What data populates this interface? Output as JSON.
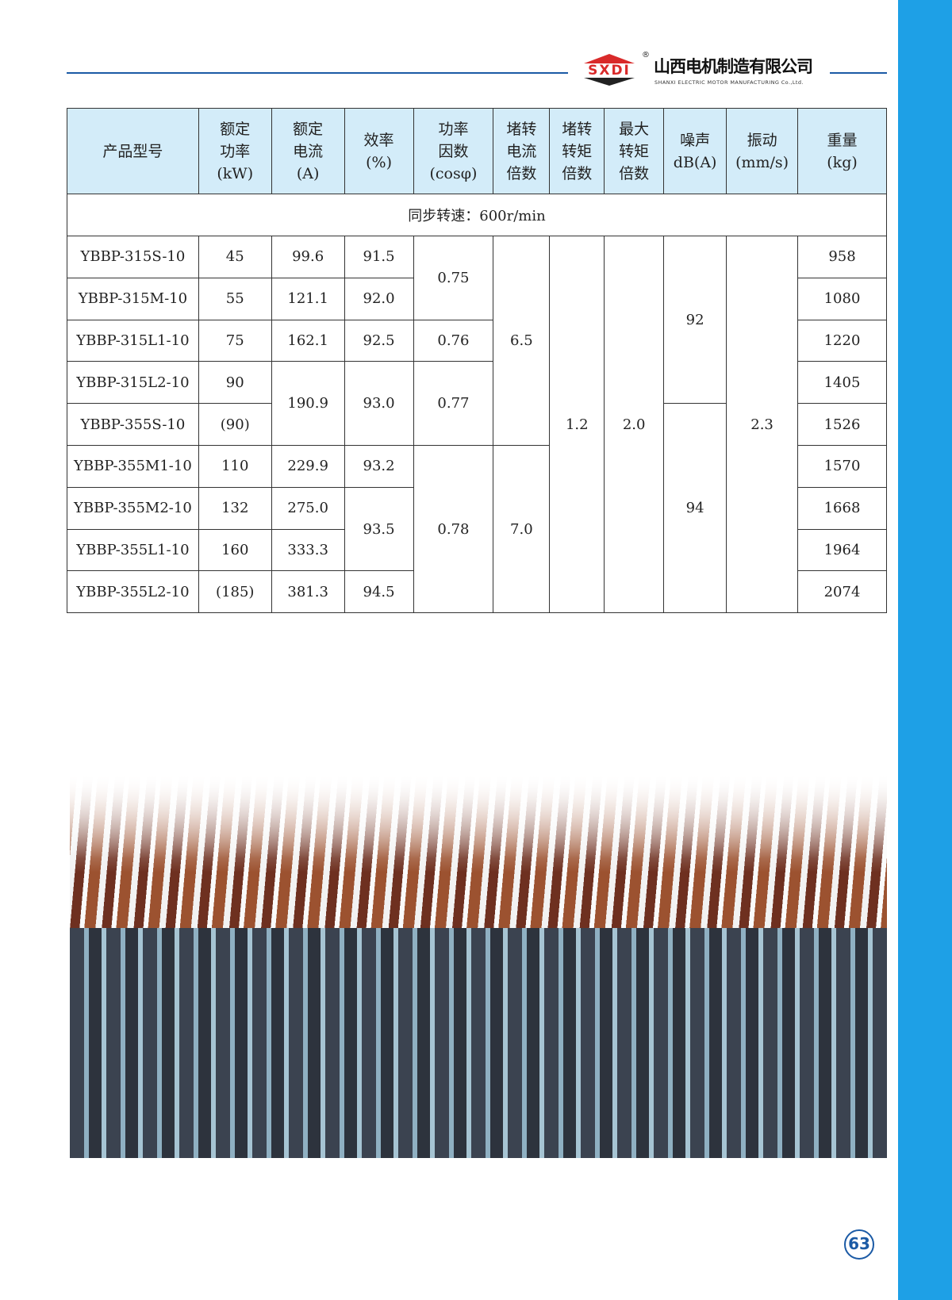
{
  "header": {
    "logo_text": "SXDI",
    "registered": "®",
    "company_cn": "山西电机制造有限公司",
    "company_en": "SHANXI ELECTRIC MOTOR MANUFACTURING Co.,Ltd."
  },
  "table": {
    "headers": [
      "产品型号",
      "额定\n功率\n(kW)",
      "额定\n电流\n(A)",
      "效率\n(%)",
      "功率\n因数\n(cosφ)",
      "堵转\n电流\n倍数",
      "堵转\n转矩\n倍数",
      "最大\n转矩\n倍数",
      "噪声\ndB(A)",
      "振动\n(mm/s)",
      "重量\n(kg)"
    ],
    "section": "同步转速：600r/min",
    "models": [
      "YBBP-315S-10",
      "YBBP-315M-10",
      "YBBP-315L1-10",
      "YBBP-315L2-10",
      "YBBP-355S-10",
      "YBBP-355M1-10",
      "YBBP-355M2-10",
      "YBBP-355L1-10",
      "YBBP-355L2-10"
    ],
    "power": [
      "45",
      "55",
      "75",
      "90",
      "(90)",
      "110",
      "132",
      "160",
      "(185)"
    ],
    "current": [
      "99.6",
      "121.1",
      "162.1",
      "190.9",
      "229.9",
      "275.0",
      "333.3",
      "381.3"
    ],
    "efficiency": [
      "91.5",
      "92.0",
      "92.5",
      "93.0",
      "93.2",
      "93.5",
      "94.5"
    ],
    "power_factor": [
      "0.75",
      "0.76",
      "0.77",
      "0.78"
    ],
    "locked_current": [
      "6.5",
      "7.0"
    ],
    "locked_torque": "1.2",
    "max_torque": "2.0",
    "noise": [
      "92",
      "94"
    ],
    "vibration": "2.3",
    "weight": [
      "958",
      "1080",
      "1220",
      "1405",
      "1526",
      "1570",
      "1668",
      "1964",
      "2074"
    ]
  },
  "page_number": "63",
  "colors": {
    "sidebar": "#1ea0e6",
    "header_bg": "#d3ecf9",
    "rule": "#1b5aa5",
    "logo_red": "#d92a2a"
  }
}
